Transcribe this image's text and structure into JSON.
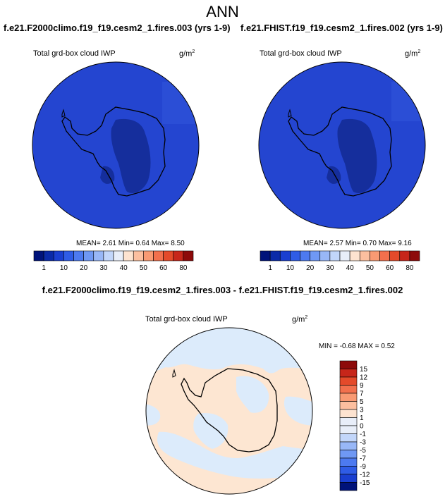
{
  "page_title": "ANN",
  "panels": [
    {
      "case_title": "f.e21.F2000climo.f19_f19.cesm2_1.fires.003 (yrs 1-9)",
      "variable": "Total grd-box cloud IWP",
      "units_base": "g/m",
      "units_exp": "2",
      "stats": "MEAN=  2.61  Min=   0.64  Max=   8.50"
    },
    {
      "case_title": "f.e21.FHIST.f19_f19.cesm2_1.fires.002 (yrs 1-9)",
      "variable": "Total grd-box cloud IWP",
      "units_base": "g/m",
      "units_exp": "2",
      "stats": "MEAN=  2.57  Min=   0.70  Max=   9.16"
    }
  ],
  "diff_panel": {
    "title": "f.e21.F2000climo.f19_f19.cesm2_1.fires.003 - f.e21.FHIST.f19_f19.cesm2_1.fires.002",
    "variable": "Total grd-box cloud IWP",
    "units_base": "g/m",
    "units_exp": "2",
    "stats": "MIN =  -0.68 MAX =   0.52"
  },
  "abs_colorbar": {
    "labels": [
      "1",
      "10",
      "20",
      "30",
      "40",
      "50",
      "60",
      "80"
    ],
    "colors": [
      "#00137a",
      "#0a2aa8",
      "#1a3fd0",
      "#2f5ce6",
      "#4d7af0",
      "#6f98f4",
      "#98b7f7",
      "#c2d6fa",
      "#e8eef9",
      "#fde3d0",
      "#fcbf9f",
      "#f99a73",
      "#f2704d",
      "#e44a2a",
      "#c7261a",
      "#8d0a0a"
    ]
  },
  "diff_colorbar": {
    "labels": [
      "15",
      "12",
      "9",
      "7",
      "5",
      "3",
      "1",
      "0",
      "-1",
      "-3",
      "-5",
      "-7",
      "-9",
      "-12",
      "-15"
    ],
    "colors": [
      "#8d0a0a",
      "#c7261a",
      "#e44a2a",
      "#f2704d",
      "#f99a73",
      "#fcbf9f",
      "#fde3d0",
      "#e8eef9",
      "#e8eef9",
      "#c2d6fa",
      "#98b7f7",
      "#6f98f4",
      "#4d7af0",
      "#2f5ce6",
      "#1a3fd0",
      "#00137a"
    ]
  },
  "map_colors": {
    "ocean_abs": "#2445d0",
    "plateau_abs": "#152e9c",
    "diff_positive": "#fde6d2",
    "diff_negative": "#dcebfb"
  }
}
